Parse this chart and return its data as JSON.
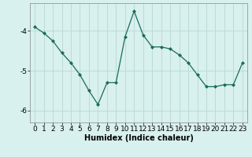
{
  "x": [
    0,
    1,
    2,
    3,
    4,
    5,
    6,
    7,
    8,
    9,
    10,
    11,
    12,
    13,
    14,
    15,
    16,
    17,
    18,
    19,
    20,
    21,
    22,
    23
  ],
  "y": [
    -3.9,
    -4.05,
    -4.25,
    -4.55,
    -4.8,
    -5.1,
    -5.5,
    -5.85,
    -5.3,
    -5.3,
    -4.15,
    -3.5,
    -4.1,
    -4.4,
    -4.4,
    -4.45,
    -4.6,
    -4.8,
    -5.1,
    -5.4,
    -5.4,
    -5.35,
    -5.35,
    -4.8
  ],
  "line_color": "#1a6b5a",
  "marker": "D",
  "marker_size": 2,
  "bg_color": "#d8f0ee",
  "grid_color": "#b8d8d4",
  "xlabel": "Humidex (Indice chaleur)",
  "ylim": [
    -6.3,
    -3.3
  ],
  "xlim": [
    -0.5,
    23.5
  ],
  "yticks": [
    -6,
    -5,
    -4
  ],
  "xticks": [
    0,
    1,
    2,
    3,
    4,
    5,
    6,
    7,
    8,
    9,
    10,
    11,
    12,
    13,
    14,
    15,
    16,
    17,
    18,
    19,
    20,
    21,
    22,
    23
  ],
  "xlabel_fontsize": 7,
  "tick_fontsize": 6.5
}
